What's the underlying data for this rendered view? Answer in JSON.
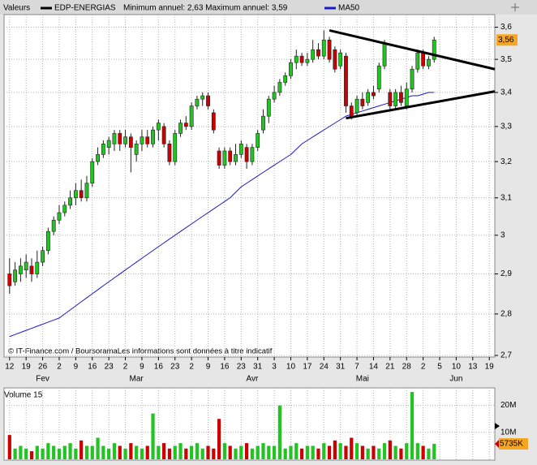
{
  "chart_data": {
    "type": "candlestick",
    "legend_title": "Valeurs",
    "name": "EDP-ENERGIAS",
    "annual_range": "Minimum annuel: 2,63 Maximum annuel: 3,59",
    "up_color": "#22c322",
    "down_color": "#cc0000",
    "open": [
      2.9,
      2.88,
      2.9,
      2.91,
      2.92,
      2.9,
      2.93,
      2.96,
      3.01,
      3.04,
      3.06,
      3.08,
      3.1,
      3.12,
      3.1,
      3.14,
      3.2,
      3.22,
      3.24,
      3.25,
      3.28,
      3.25,
      3.27,
      3.22,
      3.25,
      3.27,
      3.25,
      3.29,
      3.3,
      3.25,
      3.2,
      3.28,
      3.31,
      3.3,
      3.36,
      3.38,
      3.39,
      3.34,
      3.23,
      3.19,
      3.23,
      3.2,
      3.22,
      3.24,
      3.2,
      3.24,
      3.29,
      3.33,
      3.38,
      3.4,
      3.43,
      3.45,
      3.49,
      3.51,
      3.49,
      3.5,
      3.53,
      3.51,
      3.56,
      3.53,
      3.48,
      3.51,
      3.36,
      3.34,
      3.38,
      3.37,
      3.4,
      3.41,
      3.48,
      3.4,
      3.36,
      3.4,
      3.36,
      3.41,
      3.47,
      3.52,
      3.48,
      3.5
    ],
    "high": [
      2.94,
      2.93,
      2.94,
      2.95,
      2.94,
      2.96,
      2.97,
      3.02,
      3.05,
      3.08,
      3.09,
      3.12,
      3.14,
      3.15,
      3.16,
      3.21,
      3.24,
      3.26,
      3.27,
      3.29,
      3.29,
      3.29,
      3.28,
      3.26,
      3.29,
      3.29,
      3.3,
      3.32,
      3.31,
      3.26,
      3.29,
      3.32,
      3.33,
      3.37,
      3.39,
      3.4,
      3.4,
      3.35,
      3.24,
      3.24,
      3.24,
      3.25,
      3.26,
      3.25,
      3.25,
      3.29,
      3.35,
      3.39,
      3.42,
      3.44,
      3.46,
      3.5,
      3.53,
      3.52,
      3.52,
      3.56,
      3.55,
      3.59,
      3.57,
      3.54,
      3.53,
      3.52,
      3.37,
      3.39,
      3.4,
      3.41,
      3.42,
      3.49,
      3.56,
      3.41,
      3.41,
      3.42,
      3.43,
      3.48,
      3.53,
      3.53,
      3.51,
      3.57
    ],
    "low": [
      2.85,
      2.87,
      2.88,
      2.89,
      2.88,
      2.89,
      2.92,
      2.95,
      3.0,
      3.03,
      3.05,
      3.07,
      3.08,
      3.09,
      3.09,
      3.13,
      3.19,
      3.21,
      3.22,
      3.23,
      3.23,
      3.24,
      3.17,
      3.2,
      3.23,
      3.24,
      3.24,
      3.26,
      3.24,
      3.19,
      3.19,
      3.27,
      3.29,
      3.29,
      3.35,
      3.36,
      3.35,
      3.28,
      3.18,
      3.18,
      3.19,
      3.19,
      3.21,
      3.18,
      3.19,
      3.23,
      3.28,
      3.31,
      3.37,
      3.39,
      3.42,
      3.44,
      3.47,
      3.48,
      3.48,
      3.49,
      3.5,
      3.5,
      3.49,
      3.46,
      3.47,
      3.34,
      3.32,
      3.33,
      3.35,
      3.36,
      3.38,
      3.4,
      3.47,
      3.35,
      3.35,
      3.36,
      3.35,
      3.4,
      3.46,
      3.47,
      3.47,
      3.49
    ],
    "close": [
      2.87,
      2.91,
      2.92,
      2.93,
      2.9,
      2.93,
      2.96,
      3.01,
      3.04,
      3.06,
      3.08,
      3.1,
      3.12,
      3.1,
      3.14,
      3.2,
      3.22,
      3.25,
      3.26,
      3.28,
      3.25,
      3.27,
      3.24,
      3.25,
      3.27,
      3.25,
      3.29,
      3.31,
      3.25,
      3.2,
      3.28,
      3.31,
      3.3,
      3.36,
      3.38,
      3.39,
      3.36,
      3.29,
      3.19,
      3.23,
      3.2,
      3.22,
      3.25,
      3.2,
      3.24,
      3.28,
      3.33,
      3.38,
      3.4,
      3.43,
      3.45,
      3.49,
      3.51,
      3.49,
      3.5,
      3.53,
      3.51,
      3.56,
      3.5,
      3.47,
      3.52,
      3.36,
      3.33,
      3.38,
      3.36,
      3.4,
      3.39,
      3.48,
      3.55,
      3.36,
      3.4,
      3.37,
      3.41,
      3.47,
      3.52,
      3.48,
      3.5,
      3.56
    ],
    "ma": {
      "name": "MA50",
      "color": "#1a1acc",
      "values": [
        2.745,
        2.75,
        2.755,
        2.76,
        2.765,
        2.77,
        2.775,
        2.78,
        2.785,
        2.79,
        2.8,
        2.81,
        2.82,
        2.83,
        2.84,
        2.85,
        2.86,
        2.87,
        2.88,
        2.89,
        2.9,
        2.91,
        2.92,
        2.93,
        2.94,
        2.95,
        2.96,
        2.97,
        2.98,
        2.99,
        3.0,
        3.01,
        3.02,
        3.03,
        3.04,
        3.05,
        3.06,
        3.07,
        3.08,
        3.09,
        3.1,
        3.115,
        3.13,
        3.14,
        3.15,
        3.16,
        3.17,
        3.18,
        3.19,
        3.2,
        3.21,
        3.22,
        3.235,
        3.25,
        3.26,
        3.27,
        3.28,
        3.29,
        3.3,
        3.31,
        3.32,
        3.33,
        3.335,
        3.34,
        3.345,
        3.35,
        3.355,
        3.36,
        3.365,
        3.37,
        3.375,
        3.38,
        3.385,
        3.39,
        3.39,
        3.395,
        3.4,
        3.4
      ]
    },
    "last_label": {
      "value": 3.56,
      "label": "3,56"
    },
    "trendlines": [
      {
        "x": [
          58,
          88
        ],
        "y": [
          3.59,
          3.47
        ]
      },
      {
        "x": [
          61,
          88
        ],
        "y": [
          3.324,
          3.403
        ]
      }
    ],
    "log_scale": true,
    "grid": true,
    "xlim": [
      -1,
      88
    ],
    "ylim": [
      2.7,
      3.64
    ],
    "yticks": [
      {
        "value": 2.7,
        "label": "2,7"
      },
      {
        "value": 2.8,
        "label": "2,8"
      },
      {
        "value": 2.9,
        "label": "2,9"
      },
      3,
      {
        "value": 3.1,
        "label": "3,1"
      },
      {
        "value": 3.2,
        "label": "3,2"
      },
      {
        "value": 3.3,
        "label": "3,3"
      },
      {
        "value": 3.4,
        "label": "3,4"
      },
      {
        "value": 3.5,
        "label": "3,5"
      },
      {
        "value": 3.6,
        "label": "3,6"
      }
    ],
    "xticks": [
      {
        "value": 0,
        "label": "12"
      },
      {
        "value": 3,
        "label": "19"
      },
      {
        "value": 6,
        "label": "26"
      },
      {
        "value": 9,
        "label": "2"
      },
      {
        "value": 12,
        "label": "9"
      },
      {
        "value": 15,
        "label": "16"
      },
      {
        "value": 18,
        "label": "23"
      },
      {
        "value": 21,
        "label": "2"
      },
      {
        "value": 24,
        "label": "9"
      },
      {
        "value": 27,
        "label": "16"
      },
      {
        "value": 30,
        "label": "23"
      },
      {
        "value": 33,
        "label": "2"
      },
      {
        "value": 36,
        "label": "9"
      },
      {
        "value": 39,
        "label": "16"
      },
      {
        "value": 42,
        "label": "23"
      },
      {
        "value": 45,
        "label": "31"
      },
      {
        "value": 48,
        "label": "3"
      },
      {
        "value": 51,
        "label": "10"
      },
      {
        "value": 54,
        "label": "17"
      },
      {
        "value": 57,
        "label": "24"
      },
      {
        "value": 60,
        "label": "31"
      },
      {
        "value": 63,
        "label": "7"
      },
      {
        "value": 66,
        "label": "14"
      },
      {
        "value": 69,
        "label": "21"
      },
      {
        "value": 72,
        "label": "28"
      },
      {
        "value": 75,
        "label": "2"
      },
      {
        "value": 78,
        "label": "5"
      },
      {
        "value": 81,
        "label": "10"
      },
      {
        "value": 84,
        "label": "13"
      },
      {
        "value": 87,
        "label": "19"
      }
    ],
    "month_labels": [
      {
        "value": 6,
        "label": "Fev"
      },
      {
        "value": 23,
        "label": "Mar"
      },
      {
        "value": 44,
        "label": "Avr"
      },
      {
        "value": 64,
        "label": "Mai"
      },
      {
        "value": 81,
        "label": "Jun"
      }
    ],
    "footer": "© IT-Finance.com / BoursoramaLes informations sont données à titre indicatif",
    "volume": {
      "title": "Volume 15",
      "values": [
        9000000,
        4000000,
        5000000,
        4000000,
        3000000,
        5000000,
        4000000,
        6000000,
        5000000,
        4000000,
        5000000,
        6000000,
        4000000,
        7000000,
        5000000,
        5000000,
        8000000,
        5000000,
        4000000,
        6000000,
        5000000,
        4000000,
        6000000,
        5000000,
        4000000,
        5000000,
        17000000,
        5000000,
        6000000,
        4000000,
        5000000,
        6000000,
        4000000,
        5000000,
        6000000,
        4000000,
        5000000,
        4000000,
        15000000,
        6000000,
        5000000,
        4000000,
        5000000,
        6000000,
        4000000,
        5000000,
        6000000,
        5000000,
        5000000,
        20000000,
        4000000,
        5000000,
        6000000,
        4000000,
        5000000,
        5000000,
        4000000,
        6000000,
        5000000,
        7000000,
        6000000,
        5000000,
        8000000,
        6000000,
        5000000,
        4000000,
        5000000,
        4000000,
        6000000,
        7000000,
        5000000,
        4000000,
        6000000,
        25000000,
        6000000,
        5000000,
        4000000,
        5735000
      ],
      "ylim": [
        0,
        25000000
      ],
      "yticks": [
        {
          "value": 10000000,
          "label": "10M"
        },
        {
          "value": 20000000,
          "label": "20M"
        }
      ],
      "last_label": {
        "value": 5735000,
        "label": "5735K"
      }
    }
  }
}
